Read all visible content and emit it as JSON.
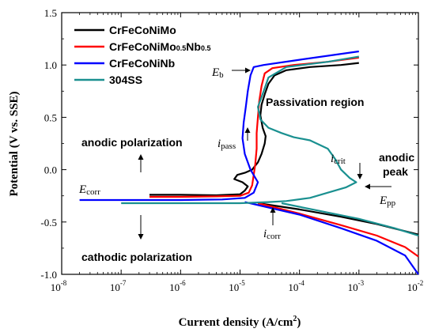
{
  "chart_data": {
    "type": "line",
    "xlabel": "Current density (A/cm",
    "xlabel_sup": "2",
    "xlabel_tail": ")",
    "ylabel": "Potential (V vs. SSE)",
    "xscale": "log",
    "xlim": [
      1e-08,
      0.01
    ],
    "ylim": [
      -1.0,
      1.5
    ],
    "x_ticks": [
      {
        "value": 1e-08,
        "base": "10",
        "exp": "-8"
      },
      {
        "value": 1e-07,
        "base": "10",
        "exp": "-7"
      },
      {
        "value": 1e-06,
        "base": "10",
        "exp": "-6"
      },
      {
        "value": 1e-05,
        "base": "10",
        "exp": "-5"
      },
      {
        "value": 0.0001,
        "base": "10",
        "exp": "-4"
      },
      {
        "value": 0.001,
        "base": "10",
        "exp": "-3"
      },
      {
        "value": 0.01,
        "base": "10",
        "exp": "-2"
      }
    ],
    "y_ticks": [
      {
        "value": -1.0,
        "label": "-1.0"
      },
      {
        "value": -0.5,
        "label": "-0.5"
      },
      {
        "value": 0.0,
        "label": "0.0"
      },
      {
        "value": 0.5,
        "label": "0.5"
      },
      {
        "value": 1.0,
        "label": "1.0"
      },
      {
        "value": 1.5,
        "label": "1.5"
      }
    ],
    "legend_position": "top-left",
    "series": [
      {
        "name": "CrFeCoNiMo",
        "legend_parts": [
          {
            "t": "CrFeCoNiMo",
            "sub": false
          }
        ],
        "color": "#000000",
        "points": [
          [
            3e-07,
            -0.24
          ],
          [
            1e-06,
            -0.24
          ],
          [
            4e-06,
            -0.245
          ],
          [
            1e-05,
            -0.235
          ],
          [
            1.2e-05,
            -0.2
          ],
          [
            1.35e-05,
            -0.16
          ],
          [
            1.1e-05,
            -0.12
          ],
          [
            8e-06,
            -0.09
          ],
          [
            9e-06,
            -0.05
          ],
          [
            1.2e-05,
            -0.03
          ],
          [
            1.6e-05,
            0.0
          ],
          [
            2e-05,
            0.07
          ],
          [
            2.3e-05,
            0.15
          ],
          [
            2.6e-05,
            0.25
          ],
          [
            2.7e-05,
            0.32
          ],
          [
            2.4e-05,
            0.4
          ],
          [
            2.2e-05,
            0.52
          ],
          [
            2.3e-05,
            0.62
          ],
          [
            2.6e-05,
            0.72
          ],
          [
            3e-05,
            0.82
          ],
          [
            3.8e-05,
            0.9
          ],
          [
            6e-05,
            0.95
          ],
          [
            0.00015,
            0.98
          ],
          [
            0.0005,
            1.0
          ],
          [
            0.001,
            1.02
          ]
        ]
      },
      {
        "name": "CrFeCoNiMo0.5Nb0.5",
        "legend_parts": [
          {
            "t": "CrFeCoNiMo",
            "sub": false
          },
          {
            "t": "0.5",
            "sub": true
          },
          {
            "t": "Nb",
            "sub": false
          },
          {
            "t": "0.5",
            "sub": true
          }
        ],
        "color": "#ff0000",
        "points": [
          [
            3e-07,
            -0.26
          ],
          [
            1e-06,
            -0.26
          ],
          [
            4e-06,
            -0.255
          ],
          [
            1e-05,
            -0.25
          ],
          [
            1.4e-05,
            -0.22
          ],
          [
            1.6e-05,
            -0.15
          ],
          [
            1.7e-05,
            -0.05
          ],
          [
            1.8e-05,
            0.05
          ],
          [
            1.9e-05,
            0.2
          ],
          [
            1.9e-05,
            0.35
          ],
          [
            2e-05,
            0.5
          ],
          [
            2.1e-05,
            0.65
          ],
          [
            2.3e-05,
            0.8
          ],
          [
            2.6e-05,
            0.92
          ],
          [
            3.5e-05,
            0.97
          ],
          [
            8e-05,
            1.0
          ],
          [
            0.0003,
            1.03
          ],
          [
            0.001,
            1.07
          ]
        ]
      },
      {
        "name": "CrFeCoNiNb",
        "legend_parts": [
          {
            "t": "CrFeCoNiNb",
            "sub": false
          }
        ],
        "color": "#0000ff",
        "points": [
          [
            2e-08,
            -0.29
          ],
          [
            1e-07,
            -0.29
          ],
          [
            1e-06,
            -0.29
          ],
          [
            5e-06,
            -0.285
          ],
          [
            1.2e-05,
            -0.27
          ],
          [
            1.7e-05,
            -0.22
          ],
          [
            2e-05,
            -0.12
          ],
          [
            1.5e-05,
            0.0
          ],
          [
            1.2e-05,
            0.15
          ],
          [
            1.1e-05,
            0.3
          ],
          [
            1.15e-05,
            0.45
          ],
          [
            1.25e-05,
            0.6
          ],
          [
            1.35e-05,
            0.75
          ],
          [
            1.5e-05,
            0.9
          ],
          [
            1.7e-05,
            0.98
          ],
          [
            2.5e-05,
            1.0
          ],
          [
            0.0001,
            1.05
          ],
          [
            0.001,
            1.13
          ]
        ]
      },
      {
        "name": "304SS",
        "legend_parts": [
          {
            "t": "304SS",
            "sub": false
          }
        ],
        "color": "#1a9090",
        "points": [
          [
            1e-07,
            -0.32
          ],
          [
            1e-06,
            -0.32
          ],
          [
            1e-05,
            -0.32
          ],
          [
            3e-05,
            -0.31
          ],
          [
            6e-05,
            -0.3
          ],
          [
            0.00015,
            -0.27
          ],
          [
            0.0003,
            -0.22
          ],
          [
            0.0006,
            -0.17
          ],
          [
            0.0009,
            -0.12
          ],
          [
            0.0007,
            -0.08
          ],
          [
            0.0005,
            0.0
          ],
          [
            0.0004,
            0.1
          ],
          [
            0.0003,
            0.2
          ],
          [
            0.00015,
            0.28
          ],
          [
            8e-05,
            0.31
          ],
          [
            5e-05,
            0.35
          ],
          [
            3e-05,
            0.4
          ],
          [
            2.2e-05,
            0.48
          ],
          [
            2e-05,
            0.6
          ],
          [
            2.5e-05,
            0.75
          ],
          [
            3e-05,
            0.88
          ],
          [
            6e-05,
            0.98
          ],
          [
            0.0003,
            1.03
          ],
          [
            0.001,
            1.08
          ]
        ]
      }
    ],
    "cathodic_branches": [
      {
        "color": "#000000",
        "points": [
          [
            2e-05,
            -0.32
          ],
          [
            0.0001,
            -0.38
          ],
          [
            0.0005,
            -0.45
          ],
          [
            0.002,
            -0.52
          ],
          [
            0.01,
            -0.62
          ]
        ]
      },
      {
        "color": "#ff0000",
        "points": [
          [
            2e-05,
            -0.32
          ],
          [
            0.0001,
            -0.42
          ],
          [
            0.0005,
            -0.53
          ],
          [
            0.002,
            -0.63
          ],
          [
            0.006,
            -0.74
          ],
          [
            0.01,
            -0.83
          ]
        ]
      },
      {
        "color": "#0000ff",
        "points": [
          [
            1.2e-05,
            -0.31
          ],
          [
            0.0001,
            -0.43
          ],
          [
            0.0005,
            -0.56
          ],
          [
            0.002,
            -0.68
          ],
          [
            0.006,
            -0.82
          ],
          [
            0.01,
            -1.0
          ]
        ]
      },
      {
        "color": "#1a9090",
        "points": [
          [
            5e-05,
            -0.32
          ],
          [
            0.0002,
            -0.39
          ],
          [
            0.001,
            -0.47
          ],
          [
            0.004,
            -0.56
          ],
          [
            0.01,
            -0.63
          ]
        ]
      }
    ],
    "annotations": {
      "eb": {
        "main": "E",
        "sub": "b"
      },
      "passivation": "Passivation region",
      "anodic_polarization": "anodic polarization",
      "ipass": {
        "main": "i",
        "sub": "pass"
      },
      "ecorr": {
        "main": "E",
        "sub": "corr"
      },
      "icrit": {
        "main": "i",
        "sub": "crit"
      },
      "anodic_peak_line1": "anodic",
      "anodic_peak_line2": "peak",
      "epp": {
        "main": "E",
        "sub": "pp"
      },
      "icorr": {
        "main": "i",
        "sub": "corr"
      },
      "cathodic_polarization": "cathodic polarization"
    }
  }
}
